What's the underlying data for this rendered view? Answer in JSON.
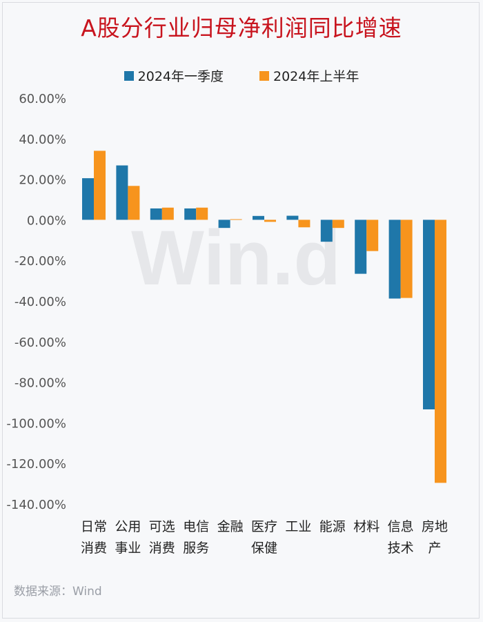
{
  "title": "A股分行业归母净利润同比增速",
  "legend": [
    "2024年一季度",
    "2024年上半年"
  ],
  "source": "数据来源：Wind",
  "watermark": "Win.d",
  "colors": {
    "series1": "#1f77a9",
    "series2": "#f7941d",
    "title": "#c8141e"
  },
  "chart_data": {
    "type": "bar",
    "categories": [
      [
        "日常",
        "消费"
      ],
      [
        "公用",
        "事业"
      ],
      [
        "可选",
        "消费"
      ],
      [
        "电信",
        "服务"
      ],
      [
        "金融"
      ],
      [
        "医疗",
        "保健"
      ],
      [
        "工业"
      ],
      [
        "能源"
      ],
      [
        "材料"
      ],
      [
        "信息",
        "技术"
      ],
      [
        "房地",
        "产"
      ]
    ],
    "series": [
      {
        "name": "2024年一季度",
        "values": [
          20.5,
          26.8,
          5.6,
          5.6,
          -4.0,
          1.9,
          2.0,
          -10.8,
          -26.6,
          -38.8,
          -93.4
        ]
      },
      {
        "name": "2024年上半年",
        "values": [
          34.0,
          16.7,
          6.0,
          6.0,
          0.3,
          -1.0,
          -3.7,
          -4.0,
          -15.4,
          -38.5,
          -129.6
        ]
      }
    ],
    "yticks": [
      "60.00%",
      "40.00%",
      "20.00%",
      "0.00%",
      "-20.00%",
      "-40.00%",
      "-60.00%",
      "-80.00%",
      "-100.00%",
      "-120.00%",
      "-140.00%"
    ],
    "ylim": [
      -140,
      60
    ],
    "grid": false,
    "legend_position": "top"
  }
}
